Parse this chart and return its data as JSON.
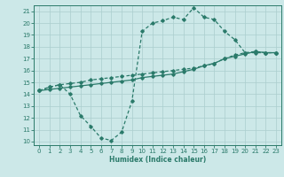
{
  "line1_x": [
    0,
    1,
    2,
    3,
    4,
    5,
    6,
    7,
    8,
    9,
    10,
    11,
    12,
    13,
    14,
    15,
    16,
    17,
    18,
    19,
    20,
    21,
    22,
    23
  ],
  "line1_y": [
    14.3,
    14.6,
    14.8,
    14.9,
    15.0,
    15.2,
    15.3,
    15.4,
    15.5,
    15.6,
    15.7,
    15.8,
    15.9,
    16.0,
    16.1,
    16.2,
    16.4,
    16.6,
    17.0,
    17.3,
    17.5,
    17.6,
    17.5,
    17.5
  ],
  "line2_x": [
    0,
    1,
    2,
    3,
    4,
    5,
    6,
    7,
    8,
    9,
    10,
    11,
    12,
    13,
    14,
    15,
    16,
    17,
    18,
    19,
    20,
    21,
    22,
    23
  ],
  "line2_y": [
    14.3,
    14.6,
    14.8,
    14.0,
    12.2,
    11.3,
    10.3,
    10.1,
    10.8,
    13.4,
    19.3,
    20.0,
    20.2,
    20.5,
    20.3,
    21.3,
    20.5,
    20.3,
    19.3,
    18.6,
    17.5,
    17.5,
    17.5,
    17.5
  ],
  "line3_x": [
    0,
    1,
    2,
    3,
    4,
    5,
    6,
    7,
    8,
    9,
    10,
    11,
    12,
    13,
    14,
    15,
    16,
    17,
    18,
    19,
    20,
    21,
    22,
    23
  ],
  "line3_y": [
    14.3,
    14.4,
    14.5,
    14.6,
    14.7,
    14.8,
    14.9,
    15.0,
    15.1,
    15.2,
    15.4,
    15.5,
    15.6,
    15.7,
    15.9,
    16.1,
    16.4,
    16.6,
    17.0,
    17.2,
    17.4,
    17.6,
    17.5,
    17.5
  ],
  "color": "#2a7a6a",
  "bg_color": "#cce8e8",
  "grid_color": "#aacece",
  "xlabel": "Humidex (Indice chaleur)",
  "xlim": [
    -0.5,
    23.5
  ],
  "ylim": [
    9.7,
    21.5
  ],
  "yticks": [
    10,
    11,
    12,
    13,
    14,
    15,
    16,
    17,
    18,
    19,
    20,
    21
  ],
  "xticks": [
    0,
    1,
    2,
    3,
    4,
    5,
    6,
    7,
    8,
    9,
    10,
    11,
    12,
    13,
    14,
    15,
    16,
    17,
    18,
    19,
    20,
    21,
    22,
    23
  ]
}
